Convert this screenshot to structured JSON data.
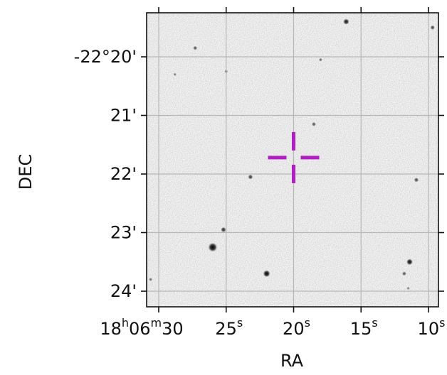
{
  "chart_data": {
    "type": "scatter",
    "subtype": "sky-image-cutout",
    "xlabel": "RA",
    "ylabel": "DEC",
    "x_ticks": [
      {
        "value_sec": 30,
        "base": "18",
        "h": "h",
        "m_val": "06",
        "m": "m",
        "s_val": "30",
        "s": ""
      },
      {
        "value_sec": 25,
        "base": "25",
        "s": "s"
      },
      {
        "value_sec": 20,
        "base": "20",
        "s": "s"
      },
      {
        "value_sec": 15,
        "base": "15",
        "s": "s"
      },
      {
        "value_sec": 10,
        "base": "10",
        "s": "s"
      }
    ],
    "y_ticks": [
      {
        "value_arcmin": 20,
        "label": "-22°20'"
      },
      {
        "value_arcmin": 21,
        "label": "21'"
      },
      {
        "value_arcmin": 22,
        "label": "22'"
      },
      {
        "value_arcmin": 23,
        "label": "23'"
      },
      {
        "value_arcmin": 24,
        "label": "24'"
      }
    ],
    "x_range_sec": [
      31,
      9.5
    ],
    "y_range_arcmin": [
      19.3,
      24.3
    ],
    "grid": true,
    "marker": {
      "ra_sec": 20.0,
      "dec_arcmin": 21.72,
      "style": "crosshair",
      "color": "#b020c0"
    },
    "stars": [
      {
        "ra": 16.1,
        "dec": 19.4,
        "b": 0.55
      },
      {
        "ra": 9.7,
        "dec": 19.5,
        "b": 0.35
      },
      {
        "ra": 27.3,
        "dec": 19.85,
        "b": 0.3
      },
      {
        "ra": 18.0,
        "dec": 20.05,
        "b": 0.2
      },
      {
        "ra": 25.0,
        "dec": 20.25,
        "b": 0.2
      },
      {
        "ra": 28.8,
        "dec": 20.3,
        "b": 0.15
      },
      {
        "ra": 18.5,
        "dec": 21.15,
        "b": 0.3
      },
      {
        "ra": 23.2,
        "dec": 22.05,
        "b": 0.4
      },
      {
        "ra": 10.9,
        "dec": 22.1,
        "b": 0.35
      },
      {
        "ra": 25.2,
        "dec": 22.95,
        "b": 0.45
      },
      {
        "ra": 26.0,
        "dec": 23.25,
        "b": 1.0
      },
      {
        "ra": 11.4,
        "dec": 23.5,
        "b": 0.6
      },
      {
        "ra": 22.0,
        "dec": 23.7,
        "b": 0.7
      },
      {
        "ra": 11.8,
        "dec": 23.7,
        "b": 0.3
      },
      {
        "ra": 30.6,
        "dec": 23.8,
        "b": 0.2
      },
      {
        "ra": 11.5,
        "dec": 23.95,
        "b": 0.15
      }
    ],
    "colors": {
      "background": "#f7f7f7",
      "grid": "#b8b8b8",
      "star": "#1a1a1a",
      "marker": "#b020c0"
    }
  }
}
